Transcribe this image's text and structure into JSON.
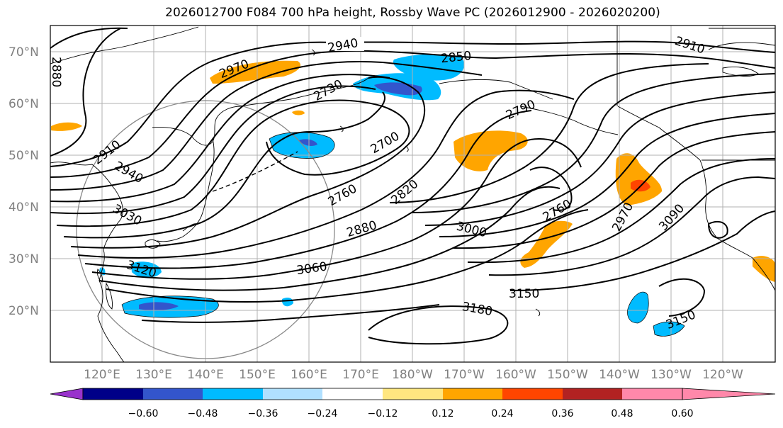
{
  "title": "2026012700 F084 700 hPa height, Rossby Wave PC (2026012900 - 2026020200)",
  "lat_labels": [
    "70°N",
    "60°N",
    "50°N",
    "40°N",
    "30°N",
    "20°N"
  ],
  "lon_labels": [
    "120°E",
    "130°E",
    "140°E",
    "150°E",
    "160°E",
    "170°E",
    "180°W",
    "170°W",
    "160°W",
    "150°W",
    "140°W",
    "130°W",
    "120°W"
  ],
  "colorbar": {
    "ticks": [
      "−0.60",
      "−0.48",
      "−0.36",
      "−0.24",
      "−0.12",
      "0.12",
      "0.24",
      "0.36",
      "0.48",
      "0.60"
    ],
    "colors": [
      "#9933cc",
      "#000088",
      "#3355cc",
      "#00bbff",
      "#b0e0ff",
      "#ffffff",
      "#ffe680",
      "#ffa500",
      "#ff4500",
      "#b22222",
      "#ff88aa"
    ]
  },
  "contour_labels": [
    "2940",
    "2850",
    "2910",
    "2970",
    "2730",
    "2790",
    "2880",
    "2910",
    "2700",
    "2940",
    "2760",
    "2820",
    "3030",
    "2760",
    "2880",
    "3000",
    "2970",
    "3090",
    "3060",
    "3150",
    "3120",
    "3180",
    "3150"
  ]
}
